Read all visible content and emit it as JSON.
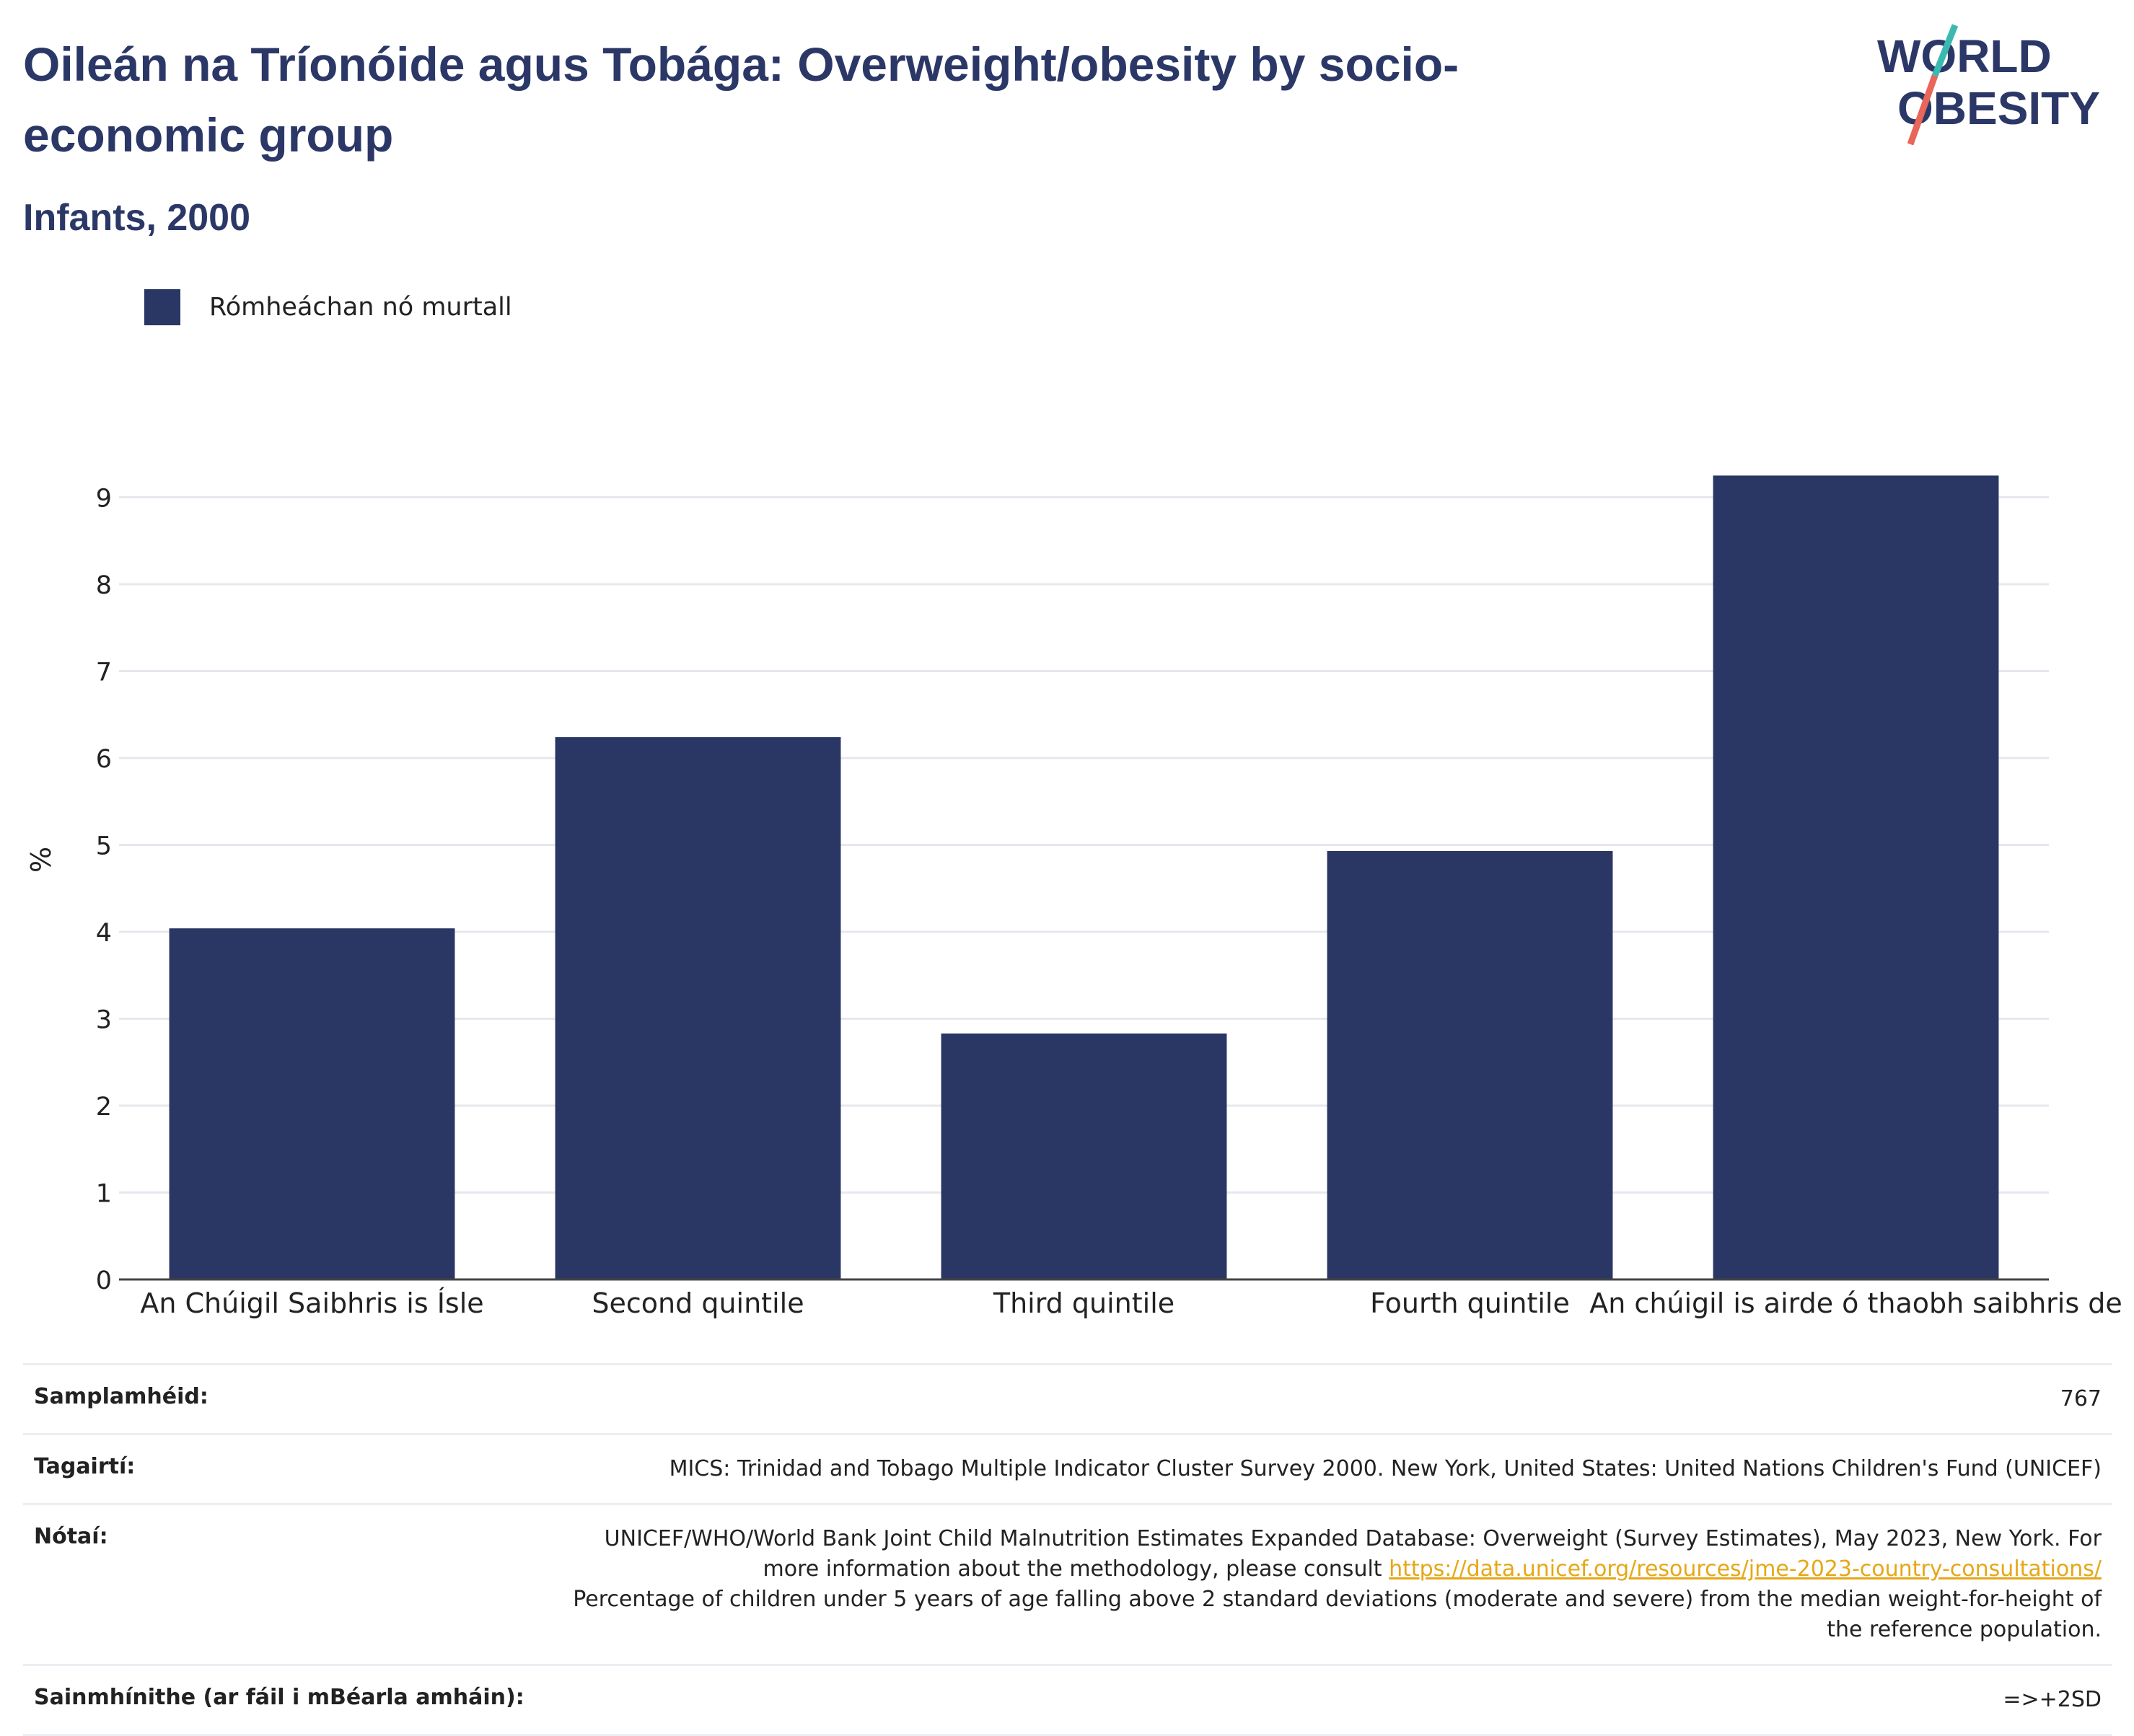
{
  "header": {
    "title": "Oileán na Tríonóide agus Tobága: Overweight/obesity by socio-economic group",
    "subtitle": "Infants, 2000",
    "logo_text": [
      "WORLD",
      "OBESITY"
    ]
  },
  "colors": {
    "bar": "#2a3663",
    "title": "#2b3867",
    "link": "#e6a717",
    "logo_teal": "#3bb9b1",
    "logo_red": "#e8665a",
    "grid": "#e6e8ee"
  },
  "legend": {
    "label": "Rómheáchan nó murtall"
  },
  "chart_data": {
    "type": "bar",
    "categories": [
      "An Chúigil Saibhris is Ísle",
      "Second quintile",
      "Third quintile",
      "Fourth quintile",
      "An chúigil is airde ó thaobh saibhris de"
    ],
    "series": [
      {
        "name": "Rómheáchan nó murtall",
        "values": [
          4.04,
          6.24,
          2.83,
          4.93,
          9.25
        ]
      }
    ],
    "ylabel": "%",
    "ylim": [
      0,
      9.6
    ],
    "yticks": [
      0,
      1,
      2,
      3,
      4,
      5,
      6,
      7,
      8,
      9
    ],
    "grid": true,
    "legend_position": "top-left"
  },
  "meta": {
    "sample_label": "Samplamhéid:",
    "sample_value": "767",
    "refs_label": "Tagairtí:",
    "refs_value": "MICS: Trinidad and Tobago Multiple Indicator Cluster Survey 2000. New York, United States: United Nations Children's Fund (UNICEF)",
    "notes_label": "Nótaí:",
    "notes_before": "UNICEF/WHO/World Bank Joint Child Malnutrition Estimates Expanded Database: Overweight (Survey Estimates), May 2023, New York. For more information about the methodology, please consult ",
    "notes_link": "https://data.unicef.org/resources/jme-2023-country-consultations/",
    "notes_after": "Percentage of children under 5 years of age falling above 2 standard deviations (moderate and severe) from the median weight-for-height of the reference population.",
    "defs_label": "Sainmhínithe (ar fáil i mBéarla amháin):",
    "defs_value": "=>+2SD"
  }
}
